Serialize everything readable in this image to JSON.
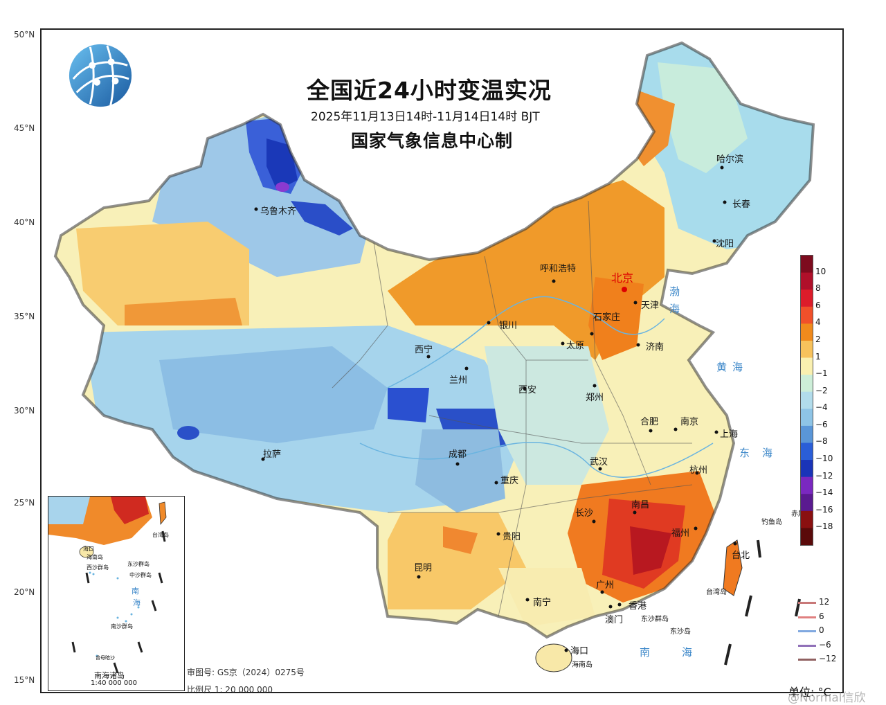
{
  "title": "全国近24小时变温实况",
  "subtitle": "2025年11月13日14时-11月14日14时 BJT",
  "maker": "国家气象信息中心制",
  "latitudes": [
    "50°N",
    "45°N",
    "40°N",
    "35°N",
    "30°N",
    "25°N",
    "20°N",
    "15°N"
  ],
  "cities": {
    "urumqi": "乌鲁木齐",
    "hohhot": "呼和浩特",
    "beijing": "北京",
    "tianjin": "天津",
    "shijiazhuang": "石家庄",
    "yinchuan": "银川",
    "taiyuan": "太原",
    "jinan": "济南",
    "xining": "西宁",
    "lanzhou": "兰州",
    "xian": "西安",
    "zhengzhou": "郑州",
    "hefei": "合肥",
    "nanjing": "南京",
    "shanghai": "上海",
    "lhasa": "拉萨",
    "chengdu": "成都",
    "chongqing": "重庆",
    "wuhan": "武汉",
    "hangzhou": "杭州",
    "nanchang": "南昌",
    "changsha": "长沙",
    "guiyang": "贵阳",
    "kunming": "昆明",
    "fuzhou": "福州",
    "taipei": "台北",
    "guangzhou": "广州",
    "hongkong": "香港",
    "macau": "澳门",
    "nanning": "南宁",
    "haikou": "海口",
    "harbin": "哈尔滨",
    "changchun": "长春",
    "shenyang": "沈阳"
  },
  "places": {
    "bohai": "渤海",
    "huanghai": "黄海",
    "donghai": "东海",
    "nanhai": "南海",
    "hainan_island": "海南岛",
    "taiwan_island": "台湾岛",
    "dongsha": "东沙群岛",
    "dongsha_island": "东沙岛",
    "diaoyu": "钓鱼岛",
    "chiwei": "赤尾屿"
  },
  "inset": {
    "title": "南海诸岛",
    "scale": "1:40 000 000",
    "labels": [
      "台湾岛",
      "海口",
      "海南岛",
      "西沙群岛",
      "中沙群岛",
      "南",
      "海",
      "东沙群岛",
      "南沙群岛",
      "曾母暗沙"
    ]
  },
  "review_no": "审图号: GS京（2024）0275号",
  "scale": "比例尺  1: 20 000 000",
  "unit": "单位: °C",
  "legend": {
    "labels": [
      "10",
      "8",
      "6",
      "4",
      "2",
      "1",
      "−1",
      "−2",
      "−4",
      "−6",
      "−8",
      "−10",
      "−12",
      "−14",
      "−16",
      "−18"
    ],
    "colors": [
      "#7d0b1e",
      "#b0102a",
      "#dc1c2a",
      "#f0502a",
      "#f08a1c",
      "#f8c25c",
      "#faf0b0",
      "#cdeed8",
      "#b2dceb",
      "#8ec4e6",
      "#5a96d8",
      "#2a5ed8",
      "#1a34b8",
      "#7a28c0",
      "#5a1a90",
      "#8a1010",
      "#5a0a0a"
    ],
    "line_labels": [
      "12",
      "6",
      "0",
      "−6",
      "−12"
    ],
    "line_colors": [
      "#c87878",
      "#e08080",
      "#80a8e0",
      "#9070b8",
      "#906060"
    ]
  },
  "watermark": "@Normal信欣"
}
